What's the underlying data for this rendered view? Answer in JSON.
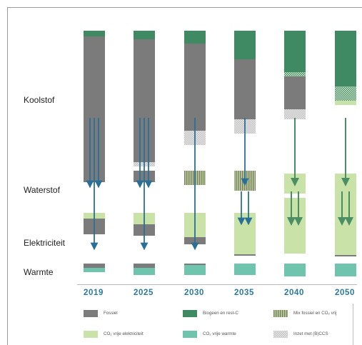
{
  "rows": {
    "koolstof": "Koolstof",
    "waterstof": "Waterstof",
    "elektriciteit": "Elektriciteit",
    "warmte": "Warmte"
  },
  "legend": {
    "fossiel": "Fossiel",
    "biogeen": "Biogeen en rest-C",
    "mix": "Mix fossiel en CO₂ vrij",
    "co2_elek": "CO₂ vrije elektriciteit",
    "co2_warmte": "CO₂ vrije warmte",
    "ccs": "Inzet met (B)CCS"
  },
  "colors": {
    "fossiel": "#7b7b7b",
    "biogeen": "#3f8a63",
    "co2_elek": "#c9e2a8",
    "co2_warmte": "#6fc4ad",
    "ccs": "#d3d3d3",
    "arrow_blue": "#2a6f97",
    "arrow_green": "#4b8e63",
    "year": "#2a79a0"
  },
  "chart_data": {
    "type": "bar",
    "categories": [
      "2019",
      "2025",
      "2030",
      "2035",
      "2040",
      "2050"
    ],
    "groups": [
      "Koolstof",
      "Waterstof",
      "Elektriciteit",
      "Warmte"
    ],
    "segment_types": [
      "Fossiel",
      "Biogeen en rest-C",
      "Mix fossiel en CO₂ vrij",
      "CO₂ vrije elektriciteit",
      "CO₂ vrije warmte",
      "Inzet met (B)CCS"
    ],
    "bars": [
      {
        "year": "2019",
        "group": "Koolstof",
        "segments": [
          {
            "type": "Biogeen en rest-C",
            "value": 4
          },
          {
            "type": "Fossiel",
            "value": 94
          },
          {
            "type": "Inzet met (B)CCS",
            "value": 0
          }
        ]
      },
      {
        "year": "2025",
        "group": "Koolstof",
        "segments": [
          {
            "type": "Biogeen en rest-C",
            "value": 6
          },
          {
            "type": "Fossiel",
            "value": 86
          },
          {
            "type": "Inzet met (B)CCS",
            "value": 3
          }
        ]
      },
      {
        "year": "2030",
        "group": "Koolstof",
        "segments": [
          {
            "type": "Biogeen en rest-C",
            "value": 9
          },
          {
            "type": "Fossiel",
            "value": 61
          },
          {
            "type": "Inzet met (B)CCS",
            "value": 10
          }
        ]
      },
      {
        "year": "2035",
        "group": "Koolstof",
        "segments": [
          {
            "type": "Biogeen en rest-C",
            "value": 20
          },
          {
            "type": "Fossiel",
            "value": 42
          },
          {
            "type": "Inzet met (B)CCS",
            "value": 10
          }
        ]
      },
      {
        "year": "2040",
        "group": "Koolstof",
        "segments": [
          {
            "type": "Biogeen en rest-C",
            "value": 29
          },
          {
            "type": "Inzet met (B)CCS",
            "value": 3
          },
          {
            "type": "Fossiel",
            "value": 23
          },
          {
            "type": "Inzet met (B)CCS",
            "value": 7
          }
        ]
      },
      {
        "year": "2050",
        "group": "Koolstof",
        "segments": [
          {
            "type": "Biogeen en rest-C",
            "value": 39
          },
          {
            "type": "Inzet met (B)CCS",
            "value": 10
          },
          {
            "type": "CO₂ vrije elektriciteit",
            "value": 3
          }
        ]
      },
      {
        "year": "2019",
        "group": "Waterstof",
        "segments": [
          {
            "type": "Fossiel",
            "value": 8
          }
        ]
      },
      {
        "year": "2025",
        "group": "Waterstof",
        "segments": [
          {
            "type": "Fossiel",
            "value": 8
          }
        ]
      },
      {
        "year": "2030",
        "group": "Waterstof",
        "segments": [
          {
            "type": "Mix fossiel en CO₂ vrij",
            "value": 10
          }
        ]
      },
      {
        "year": "2035",
        "group": "Waterstof",
        "segments": [
          {
            "type": "Mix fossiel en CO₂ vrij",
            "value": 14
          }
        ]
      },
      {
        "year": "2040",
        "group": "Waterstof",
        "segments": [
          {
            "type": "CO₂ vrije elektriciteit",
            "value": 14
          }
        ]
      },
      {
        "year": "2050",
        "group": "Waterstof",
        "segments": [
          {
            "type": "CO₂ vrije elektriciteit",
            "value": 16
          }
        ]
      },
      {
        "year": "2019",
        "group": "Elektriciteit",
        "segments": [
          {
            "type": "CO₂ vrije elektriciteit",
            "value": 4
          },
          {
            "type": "Fossiel",
            "value": 11
          }
        ]
      },
      {
        "year": "2025",
        "group": "Elektriciteit",
        "segments": [
          {
            "type": "CO₂ vrije elektriciteit",
            "value": 8
          },
          {
            "type": "Fossiel",
            "value": 8
          }
        ]
      },
      {
        "year": "2030",
        "group": "Elektriciteit",
        "segments": [
          {
            "type": "CO₂ vrije elektriciteit",
            "value": 17
          },
          {
            "type": "Fossiel",
            "value": 5
          }
        ]
      },
      {
        "year": "2035",
        "group": "Elektriciteit",
        "segments": [
          {
            "type": "CO₂ vrije elektriciteit",
            "value": 29
          },
          {
            "type": "Fossiel",
            "value": 1
          }
        ]
      },
      {
        "year": "2040",
        "group": "Elektriciteit",
        "segments": [
          {
            "type": "CO₂ vrije elektriciteit",
            "value": 39
          }
        ]
      },
      {
        "year": "2050",
        "group": "Elektriciteit",
        "segments": [
          {
            "type": "CO₂ vrije elektriciteit",
            "value": 41
          },
          {
            "type": "Fossiel",
            "value": 1
          }
        ]
      },
      {
        "year": "2019",
        "group": "Warmte",
        "segments": [
          {
            "type": "Fossiel",
            "value": 3
          },
          {
            "type": "CO₂ vrije warmte",
            "value": 3
          }
        ]
      },
      {
        "year": "2025",
        "group": "Warmte",
        "segments": [
          {
            "type": "Fossiel",
            "value": 3
          },
          {
            "type": "CO₂ vrije warmte",
            "value": 5
          }
        ]
      },
      {
        "year": "2030",
        "group": "Warmte",
        "segments": [
          {
            "type": "Fossiel",
            "value": 1
          },
          {
            "type": "CO₂ vrije warmte",
            "value": 7
          }
        ]
      },
      {
        "year": "2035",
        "group": "Warmte",
        "segments": [
          {
            "type": "CO₂ vrije warmte",
            "value": 8
          }
        ]
      },
      {
        "year": "2040",
        "group": "Warmte",
        "segments": [
          {
            "type": "CO₂ vrije warmte",
            "value": 9
          }
        ]
      },
      {
        "year": "2050",
        "group": "Warmte",
        "segments": [
          {
            "type": "CO₂ vrije warmte",
            "value": 9
          }
        ]
      }
    ],
    "flows": [
      {
        "year": "2019",
        "from": "Koolstof",
        "to": "Waterstof",
        "count": 2
      },
      {
        "year": "2019",
        "from": "Koolstof",
        "to": "Elektriciteit",
        "count": 1
      },
      {
        "year": "2025",
        "from": "Koolstof",
        "to": "Waterstof",
        "count": 2
      },
      {
        "year": "2025",
        "from": "Koolstof",
        "to": "Elektriciteit",
        "count": 1
      },
      {
        "year": "2030",
        "from": "Koolstof",
        "to": "Elektriciteit",
        "count": 1
      },
      {
        "year": "2035",
        "from": "Koolstof",
        "to": "Waterstof",
        "count": 1
      },
      {
        "year": "2035",
        "from": "Waterstof",
        "to": "Elektriciteit",
        "count": 2
      },
      {
        "year": "2040",
        "from": "Koolstof",
        "to": "Waterstof",
        "count": 1
      },
      {
        "year": "2040",
        "from": "Waterstof",
        "to": "Elektriciteit",
        "count": 2
      },
      {
        "year": "2050",
        "from": "Koolstof",
        "to": "Waterstof",
        "count": 1
      },
      {
        "year": "2050",
        "from": "Waterstof",
        "to": "Elektriciteit",
        "count": 2
      }
    ],
    "legend_position": "bottom",
    "grid": false
  }
}
